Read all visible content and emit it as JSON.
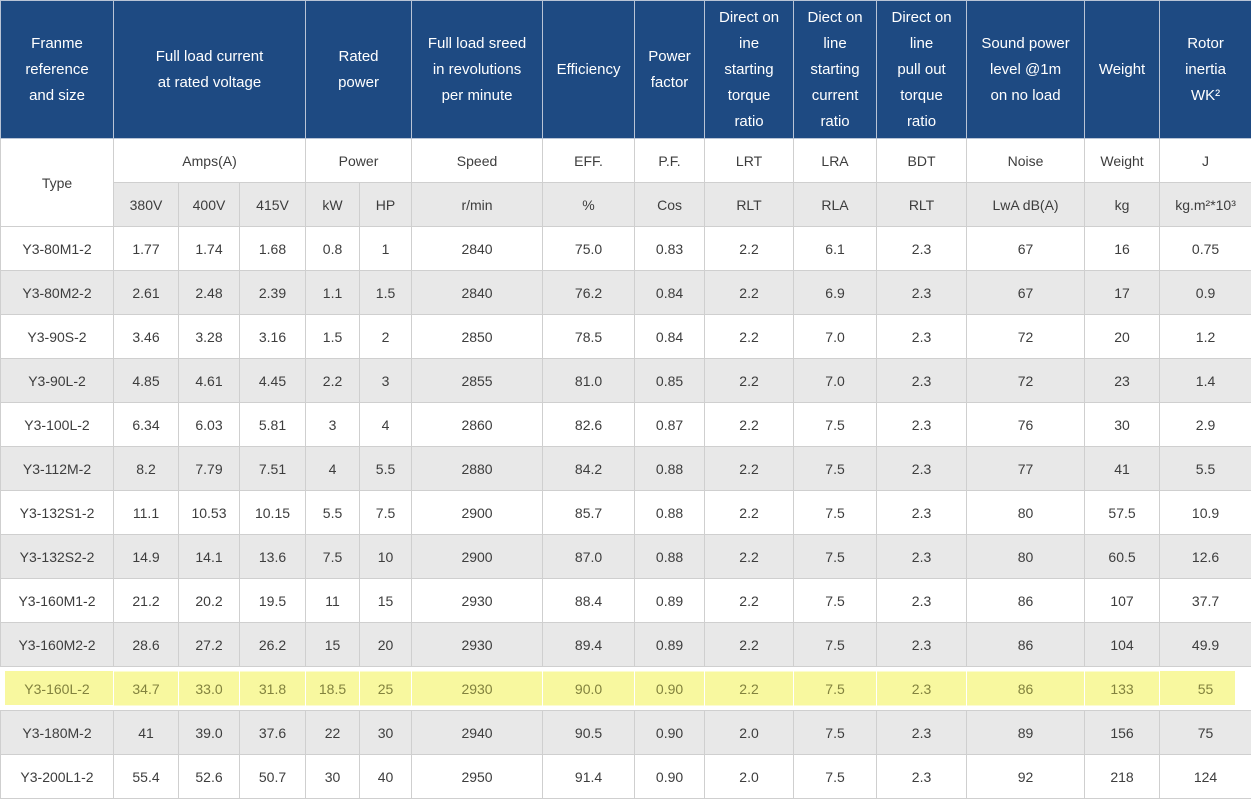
{
  "table": {
    "colors": {
      "header_bg": "#1e4a82",
      "header_text": "#ffffff",
      "header_border": "#b9c4d6",
      "body_text": "#3d3d3d",
      "alt_row_bg": "#e8e8e8",
      "units_row_bg": "#e8e8e8",
      "border": "#cfcfcf",
      "highlight_bg": "#f8f89f",
      "highlight_text": "#82823e"
    },
    "header": {
      "top": [
        "Franme\nreference\nand size",
        "Full load current\nat rated voltage",
        "Rated\npower",
        "Full load sreed\nin revolutions\nper minute",
        "Efficiency",
        "Power\nfactor",
        "Direct on\nine\nstarting\ntorque\nratio",
        "Diect on\nline\nstarting\ncurrent\nratio",
        "Direct on\nline\npull out\ntorque\nratio",
        "Sound power\nlevel @1m\non no load",
        "Weight",
        "Rotor\ninertia\nWK²"
      ],
      "mid": [
        "Type",
        "Amps(A)",
        "Power",
        "Speed",
        "EFF.",
        "P.F.",
        "LRT",
        "LRA",
        "BDT",
        "Noise",
        "Weight",
        "J"
      ],
      "units": [
        "380V",
        "400V",
        "415V",
        "kW",
        "HP",
        "r/min",
        "%",
        "Cos",
        "RLT",
        "RLA",
        "RLT",
        "LwA dB(A)",
        "kg",
        "kg.m²*10³"
      ]
    },
    "rows": [
      {
        "highlighted": false,
        "cells": [
          "Y3-80M1-2",
          "1.77",
          "1.74",
          "1.68",
          "0.8",
          "1",
          "2840",
          "75.0",
          "0.83",
          "2.2",
          "6.1",
          "2.3",
          "67",
          "16",
          "0.75"
        ]
      },
      {
        "highlighted": false,
        "cells": [
          "Y3-80M2-2",
          "2.61",
          "2.48",
          "2.39",
          "1.1",
          "1.5",
          "2840",
          "76.2",
          "0.84",
          "2.2",
          "6.9",
          "2.3",
          "67",
          "17",
          "0.9"
        ]
      },
      {
        "highlighted": false,
        "cells": [
          "Y3-90S-2",
          "3.46",
          "3.28",
          "3.16",
          "1.5",
          "2",
          "2850",
          "78.5",
          "0.84",
          "2.2",
          "7.0",
          "2.3",
          "72",
          "20",
          "1.2"
        ]
      },
      {
        "highlighted": false,
        "cells": [
          "Y3-90L-2",
          "4.85",
          "4.61",
          "4.45",
          "2.2",
          "3",
          "2855",
          "81.0",
          "0.85",
          "2.2",
          "7.0",
          "2.3",
          "72",
          "23",
          "1.4"
        ]
      },
      {
        "highlighted": false,
        "cells": [
          "Y3-100L-2",
          "6.34",
          "6.03",
          "5.81",
          "3",
          "4",
          "2860",
          "82.6",
          "0.87",
          "2.2",
          "7.5",
          "2.3",
          "76",
          "30",
          "2.9"
        ]
      },
      {
        "highlighted": false,
        "cells": [
          "Y3-112M-2",
          "8.2",
          "7.79",
          "7.51",
          "4",
          "5.5",
          "2880",
          "84.2",
          "0.88",
          "2.2",
          "7.5",
          "2.3",
          "77",
          "41",
          "5.5"
        ]
      },
      {
        "highlighted": false,
        "cells": [
          "Y3-132S1-2",
          "11.1",
          "10.53",
          "10.15",
          "5.5",
          "7.5",
          "2900",
          "85.7",
          "0.88",
          "2.2",
          "7.5",
          "2.3",
          "80",
          "57.5",
          "10.9"
        ]
      },
      {
        "highlighted": false,
        "cells": [
          "Y3-132S2-2",
          "14.9",
          "14.1",
          "13.6",
          "7.5",
          "10",
          "2900",
          "87.0",
          "0.88",
          "2.2",
          "7.5",
          "2.3",
          "80",
          "60.5",
          "12.6"
        ]
      },
      {
        "highlighted": false,
        "cells": [
          "Y3-160M1-2",
          "21.2",
          "20.2",
          "19.5",
          "11",
          "15",
          "2930",
          "88.4",
          "0.89",
          "2.2",
          "7.5",
          "2.3",
          "86",
          "107",
          "37.7"
        ]
      },
      {
        "highlighted": false,
        "cells": [
          "Y3-160M2-2",
          "28.6",
          "27.2",
          "26.2",
          "15",
          "20",
          "2930",
          "89.4",
          "0.89",
          "2.2",
          "7.5",
          "2.3",
          "86",
          "104",
          "49.9"
        ]
      },
      {
        "highlighted": true,
        "cells": [
          "Y3-160L-2",
          "34.7",
          "33.0",
          "31.8",
          "18.5",
          "25",
          "2930",
          "90.0",
          "0.90",
          "2.2",
          "7.5",
          "2.3",
          "86",
          "133",
          "55"
        ]
      },
      {
        "highlighted": false,
        "cells": [
          "Y3-180M-2",
          "41",
          "39.0",
          "37.6",
          "22",
          "30",
          "2940",
          "90.5",
          "0.90",
          "2.0",
          "7.5",
          "2.3",
          "89",
          "156",
          "75"
        ]
      },
      {
        "highlighted": false,
        "cells": [
          "Y3-200L1-2",
          "55.4",
          "52.6",
          "50.7",
          "30",
          "40",
          "2950",
          "91.4",
          "0.90",
          "2.0",
          "7.5",
          "2.3",
          "92",
          "218",
          "124"
        ]
      }
    ]
  }
}
